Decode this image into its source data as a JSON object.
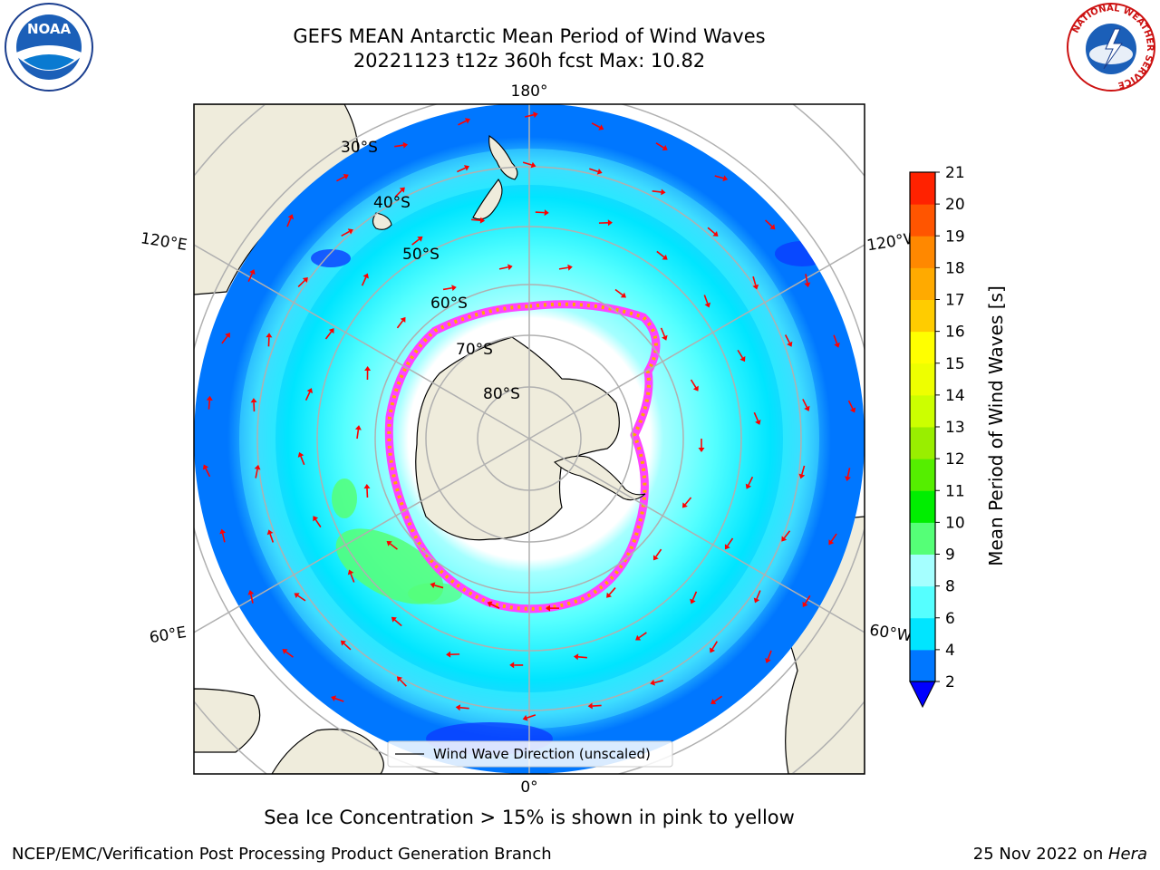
{
  "title": {
    "line1": "GEFS MEAN Antarctic Mean Period of Wind Waves",
    "line2": "20221123 t12z 360h fcst   Max: 10.82"
  },
  "longitude_labels": {
    "top": "180°",
    "bottom": "0°",
    "upper_left": "120°E",
    "upper_right": "120°W",
    "lower_left": "60°E",
    "lower_right": "60°W"
  },
  "latitude_labels": [
    "30°S",
    "40°S",
    "50°S",
    "60°S",
    "70°S",
    "80°S"
  ],
  "legend": {
    "label": "Wind Wave Direction (unscaled)"
  },
  "colorbar": {
    "label": "Mean Period of Wind Waves [s]",
    "ticks": [
      "2",
      "4",
      "6",
      "8",
      "9",
      "10",
      "11",
      "12",
      "13",
      "14",
      "15",
      "16",
      "17",
      "18",
      "19",
      "20",
      "21"
    ],
    "colors": [
      "#0077ff",
      "#00e5ff",
      "#55ffff",
      "#a5ffff",
      "#55ff77",
      "#00ee00",
      "#55ee00",
      "#99ee00",
      "#ccff00",
      "#eeff00",
      "#ffff00",
      "#ffcc00",
      "#ffaa00",
      "#ff8800",
      "#ff5500",
      "#ff2200"
    ],
    "extend_color": "#0000ff"
  },
  "note": "Sea Ice Concentration > 15% is shown in pink to yellow",
  "footer": {
    "left": "NCEP/EMC/Verification Post Processing Product Generation Branch",
    "right_date": "25 Nov 2022 on ",
    "right_system": "Hera"
  },
  "logos": {
    "noaa_text": "NOAA",
    "nws_text": "NATIONAL WEATHER SERVICE"
  },
  "colors": {
    "land": "#efecdc",
    "ocean_low": "#0077ff",
    "ocean_mid": "#00e5ff",
    "ocean_high": "#55ffff",
    "arrow": "#ff0000",
    "sea_ice": "#ff44ff"
  }
}
